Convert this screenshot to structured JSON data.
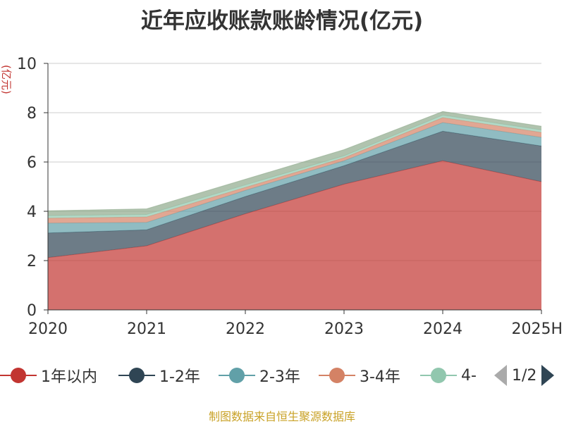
{
  "title": "近年应收账款账龄情况(亿元)",
  "unit_label": "(亿元)",
  "source": "制图数据来自恒生聚源数据库",
  "legend_page": "1/2",
  "chart_data": {
    "type": "area",
    "stacked": true,
    "title": "近年应收账款账龄情况(亿元)",
    "ylabel": "(亿元)",
    "x": [
      "2020",
      "2021",
      "2022",
      "2023",
      "2024",
      "2025H"
    ],
    "ylim": [
      0,
      10
    ],
    "yticks": [
      0,
      2,
      4,
      6,
      8,
      10
    ],
    "grid": true,
    "legend_position": "bottom",
    "series": [
      {
        "name": "1年以内",
        "color": "#c23531",
        "values": [
          2.12,
          2.6,
          3.9,
          5.1,
          6.05,
          5.2
        ]
      },
      {
        "name": "1-2年",
        "color": "#2f4554",
        "values": [
          1.0,
          0.65,
          0.7,
          0.75,
          1.2,
          1.45
        ]
      },
      {
        "name": "2-3年",
        "color": "#61a0a8",
        "values": [
          0.4,
          0.3,
          0.25,
          0.2,
          0.35,
          0.35
        ]
      },
      {
        "name": "3-4年",
        "color": "#d48265",
        "values": [
          0.2,
          0.22,
          0.12,
          0.12,
          0.2,
          0.2
        ]
      },
      {
        "name": "4-",
        "color": "#91c7ae",
        "values": [
          0.1,
          0.1,
          0.1,
          0.08,
          0.1,
          0.1
        ]
      },
      {
        "name": "",
        "color": "#8faa8c",
        "values": [
          0.2,
          0.23,
          0.23,
          0.25,
          0.15,
          0.15
        ]
      }
    ]
  }
}
